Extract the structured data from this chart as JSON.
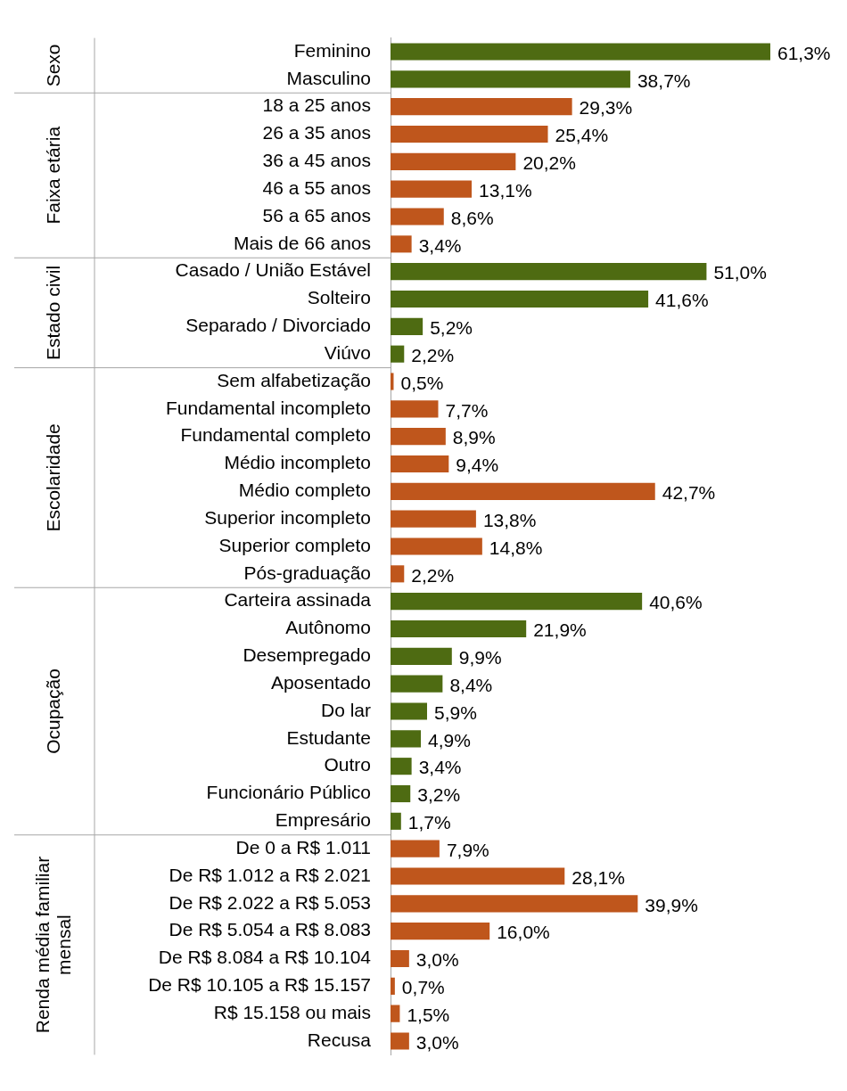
{
  "chart_data": {
    "type": "bar",
    "orientation": "horizontal",
    "legend": false,
    "grid": false,
    "annotations": [
      "Sexo",
      "Faixa etária",
      "Estado civil",
      "Escolaridade",
      "Ocupação",
      "Renda média familiar mensal"
    ],
    "categories": [
      "Feminino",
      "Masculino",
      "18 a 25 anos",
      "26 a 35 anos",
      "36 a 45 anos",
      "46 a 55 anos",
      "56 a 65 anos",
      "Mais de 66 anos",
      "Casado / União Estável",
      "Solteiro",
      "Separado / Divorciado",
      "Viúvo",
      "Sem alfabetização",
      "Fundamental incompleto",
      "Fundamental completo",
      "Médio incompleto",
      "Médio completo",
      "Superior incompleto",
      "Superior completo",
      "Pós-graduação",
      "Carteira assinada",
      "Autônomo",
      "Desempregado",
      "Aposentado",
      "Do lar",
      "Estudante",
      "Outro",
      "Funcionário Público",
      "Empresário",
      "De 0 a R$ 1.011",
      "De R$ 1.012 a R$ 2.021",
      "De R$ 2.022 a R$ 5.053",
      "De R$ 5.054 a R$ 8.083",
      "De R$ 8.084 a R$ 10.104",
      "De R$ 10.105 a R$ 15.157",
      "R$ 15.158 ou mais",
      "Recusa"
    ],
    "series": [
      {
        "color": "#4e6b12",
        "values": [
          61.3,
          38.7,
          null,
          null,
          null,
          null,
          null,
          null,
          null,
          null,
          null,
          null,
          null,
          null,
          null,
          null,
          null,
          null,
          null,
          null,
          null,
          null,
          null,
          null,
          null,
          null,
          null,
          null,
          null,
          null,
          null,
          null,
          null,
          null,
          null,
          null,
          null
        ],
        "value_labels": [
          "61,3%",
          "38,7%",
          null,
          null,
          null,
          null,
          null,
          null,
          null,
          null,
          null,
          null,
          null,
          null,
          null,
          null,
          null,
          null,
          null,
          null,
          null,
          null,
          null,
          null,
          null,
          null,
          null,
          null,
          null,
          null,
          null,
          null,
          null,
          null,
          null,
          null,
          null
        ]
      },
      {
        "color": "#bf561c",
        "values": [
          null,
          null,
          29.3,
          25.4,
          20.2,
          13.1,
          8.6,
          3.4,
          null,
          null,
          null,
          null,
          null,
          null,
          null,
          null,
          null,
          null,
          null,
          null,
          null,
          null,
          null,
          null,
          null,
          null,
          null,
          null,
          null,
          null,
          null,
          null,
          null,
          null,
          null,
          null,
          null
        ],
        "value_labels": [
          null,
          null,
          "29,3%",
          "25,4%",
          "20,2%",
          "13,1%",
          "8,6%",
          "3,4%",
          null,
          null,
          null,
          null,
          null,
          null,
          null,
          null,
          null,
          null,
          null,
          null,
          null,
          null,
          null,
          null,
          null,
          null,
          null,
          null,
          null,
          null,
          null,
          null,
          null,
          null,
          null,
          null,
          null
        ]
      },
      {
        "color": "#4e6b12",
        "values": [
          null,
          null,
          null,
          null,
          null,
          null,
          null,
          null,
          51.0,
          41.6,
          5.2,
          2.2,
          null,
          null,
          null,
          null,
          null,
          null,
          null,
          null,
          null,
          null,
          null,
          null,
          null,
          null,
          null,
          null,
          null,
          null,
          null,
          null,
          null,
          null,
          null,
          null,
          null
        ],
        "value_labels": [
          null,
          null,
          null,
          null,
          null,
          null,
          null,
          null,
          "51,0%",
          "41,6%",
          "5,2%",
          "2,2%",
          null,
          null,
          null,
          null,
          null,
          null,
          null,
          null,
          null,
          null,
          null,
          null,
          null,
          null,
          null,
          null,
          null,
          null,
          null,
          null,
          null,
          null,
          null,
          null,
          null
        ]
      },
      {
        "color": "#bf561c",
        "values": [
          null,
          null,
          null,
          null,
          null,
          null,
          null,
          null,
          null,
          null,
          null,
          null,
          0.5,
          7.7,
          8.9,
          9.4,
          42.7,
          13.8,
          14.8,
          2.2,
          null,
          null,
          null,
          null,
          null,
          null,
          null,
          null,
          null,
          null,
          null,
          null,
          null,
          null,
          null,
          null,
          null
        ],
        "value_labels": [
          null,
          null,
          null,
          null,
          null,
          null,
          null,
          null,
          null,
          null,
          null,
          null,
          "0,5%",
          "7,7%",
          "8,9%",
          "9,4%",
          "42,7%",
          "13,8%",
          "14,8%",
          "2,2%",
          null,
          null,
          null,
          null,
          null,
          null,
          null,
          null,
          null,
          null,
          null,
          null,
          null,
          null,
          null,
          null,
          null
        ]
      },
      {
        "color": "#4e6b12",
        "values": [
          null,
          null,
          null,
          null,
          null,
          null,
          null,
          null,
          null,
          null,
          null,
          null,
          null,
          null,
          null,
          null,
          null,
          null,
          null,
          null,
          40.6,
          21.9,
          9.9,
          8.4,
          5.9,
          4.9,
          3.4,
          3.2,
          1.7,
          null,
          null,
          null,
          null,
          null,
          null,
          null,
          null
        ],
        "value_labels": [
          null,
          null,
          null,
          null,
          null,
          null,
          null,
          null,
          null,
          null,
          null,
          null,
          null,
          null,
          null,
          null,
          null,
          null,
          null,
          null,
          "40,6%",
          "21,9%",
          "9,9%",
          "8,4%",
          "5,9%",
          "4,9%",
          "3,4%",
          "3,2%",
          "1,7%",
          null,
          null,
          null,
          null,
          null,
          null,
          null,
          null
        ]
      },
      {
        "color": "#bf561c",
        "values": [
          null,
          null,
          null,
          null,
          null,
          null,
          null,
          null,
          null,
          null,
          null,
          null,
          null,
          null,
          null,
          null,
          null,
          null,
          null,
          null,
          null,
          null,
          null,
          null,
          null,
          null,
          null,
          null,
          null,
          7.9,
          28.1,
          39.9,
          16.0,
          3.0,
          0.7,
          1.5,
          3.0
        ],
        "value_labels": [
          null,
          null,
          null,
          null,
          null,
          null,
          null,
          null,
          null,
          null,
          null,
          null,
          null,
          null,
          null,
          null,
          null,
          null,
          null,
          null,
          null,
          null,
          null,
          null,
          null,
          null,
          null,
          null,
          null,
          "7,9%",
          "28,1%",
          "39,9%",
          "16,0%",
          "3,0%",
          "0,7%",
          "1,5%",
          "3,0%"
        ]
      }
    ]
  }
}
